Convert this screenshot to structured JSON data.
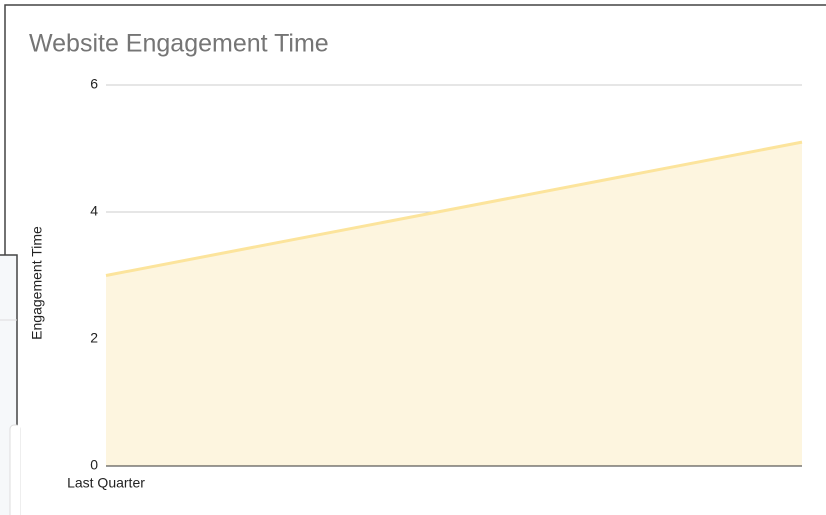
{
  "chart_data": {
    "type": "area",
    "title": "Website Engagement Time",
    "y_label": "Engagement Time",
    "categories": [
      "Last Quarter",
      null
    ],
    "series": [
      {
        "name": "Engagement Time",
        "color": "#fce49c",
        "fill": "#fdf5df",
        "values": [
          3,
          5.1
        ]
      }
    ],
    "ylim": [
      0,
      6
    ],
    "yticks": [
      0,
      2,
      4,
      6
    ],
    "grid": true
  }
}
